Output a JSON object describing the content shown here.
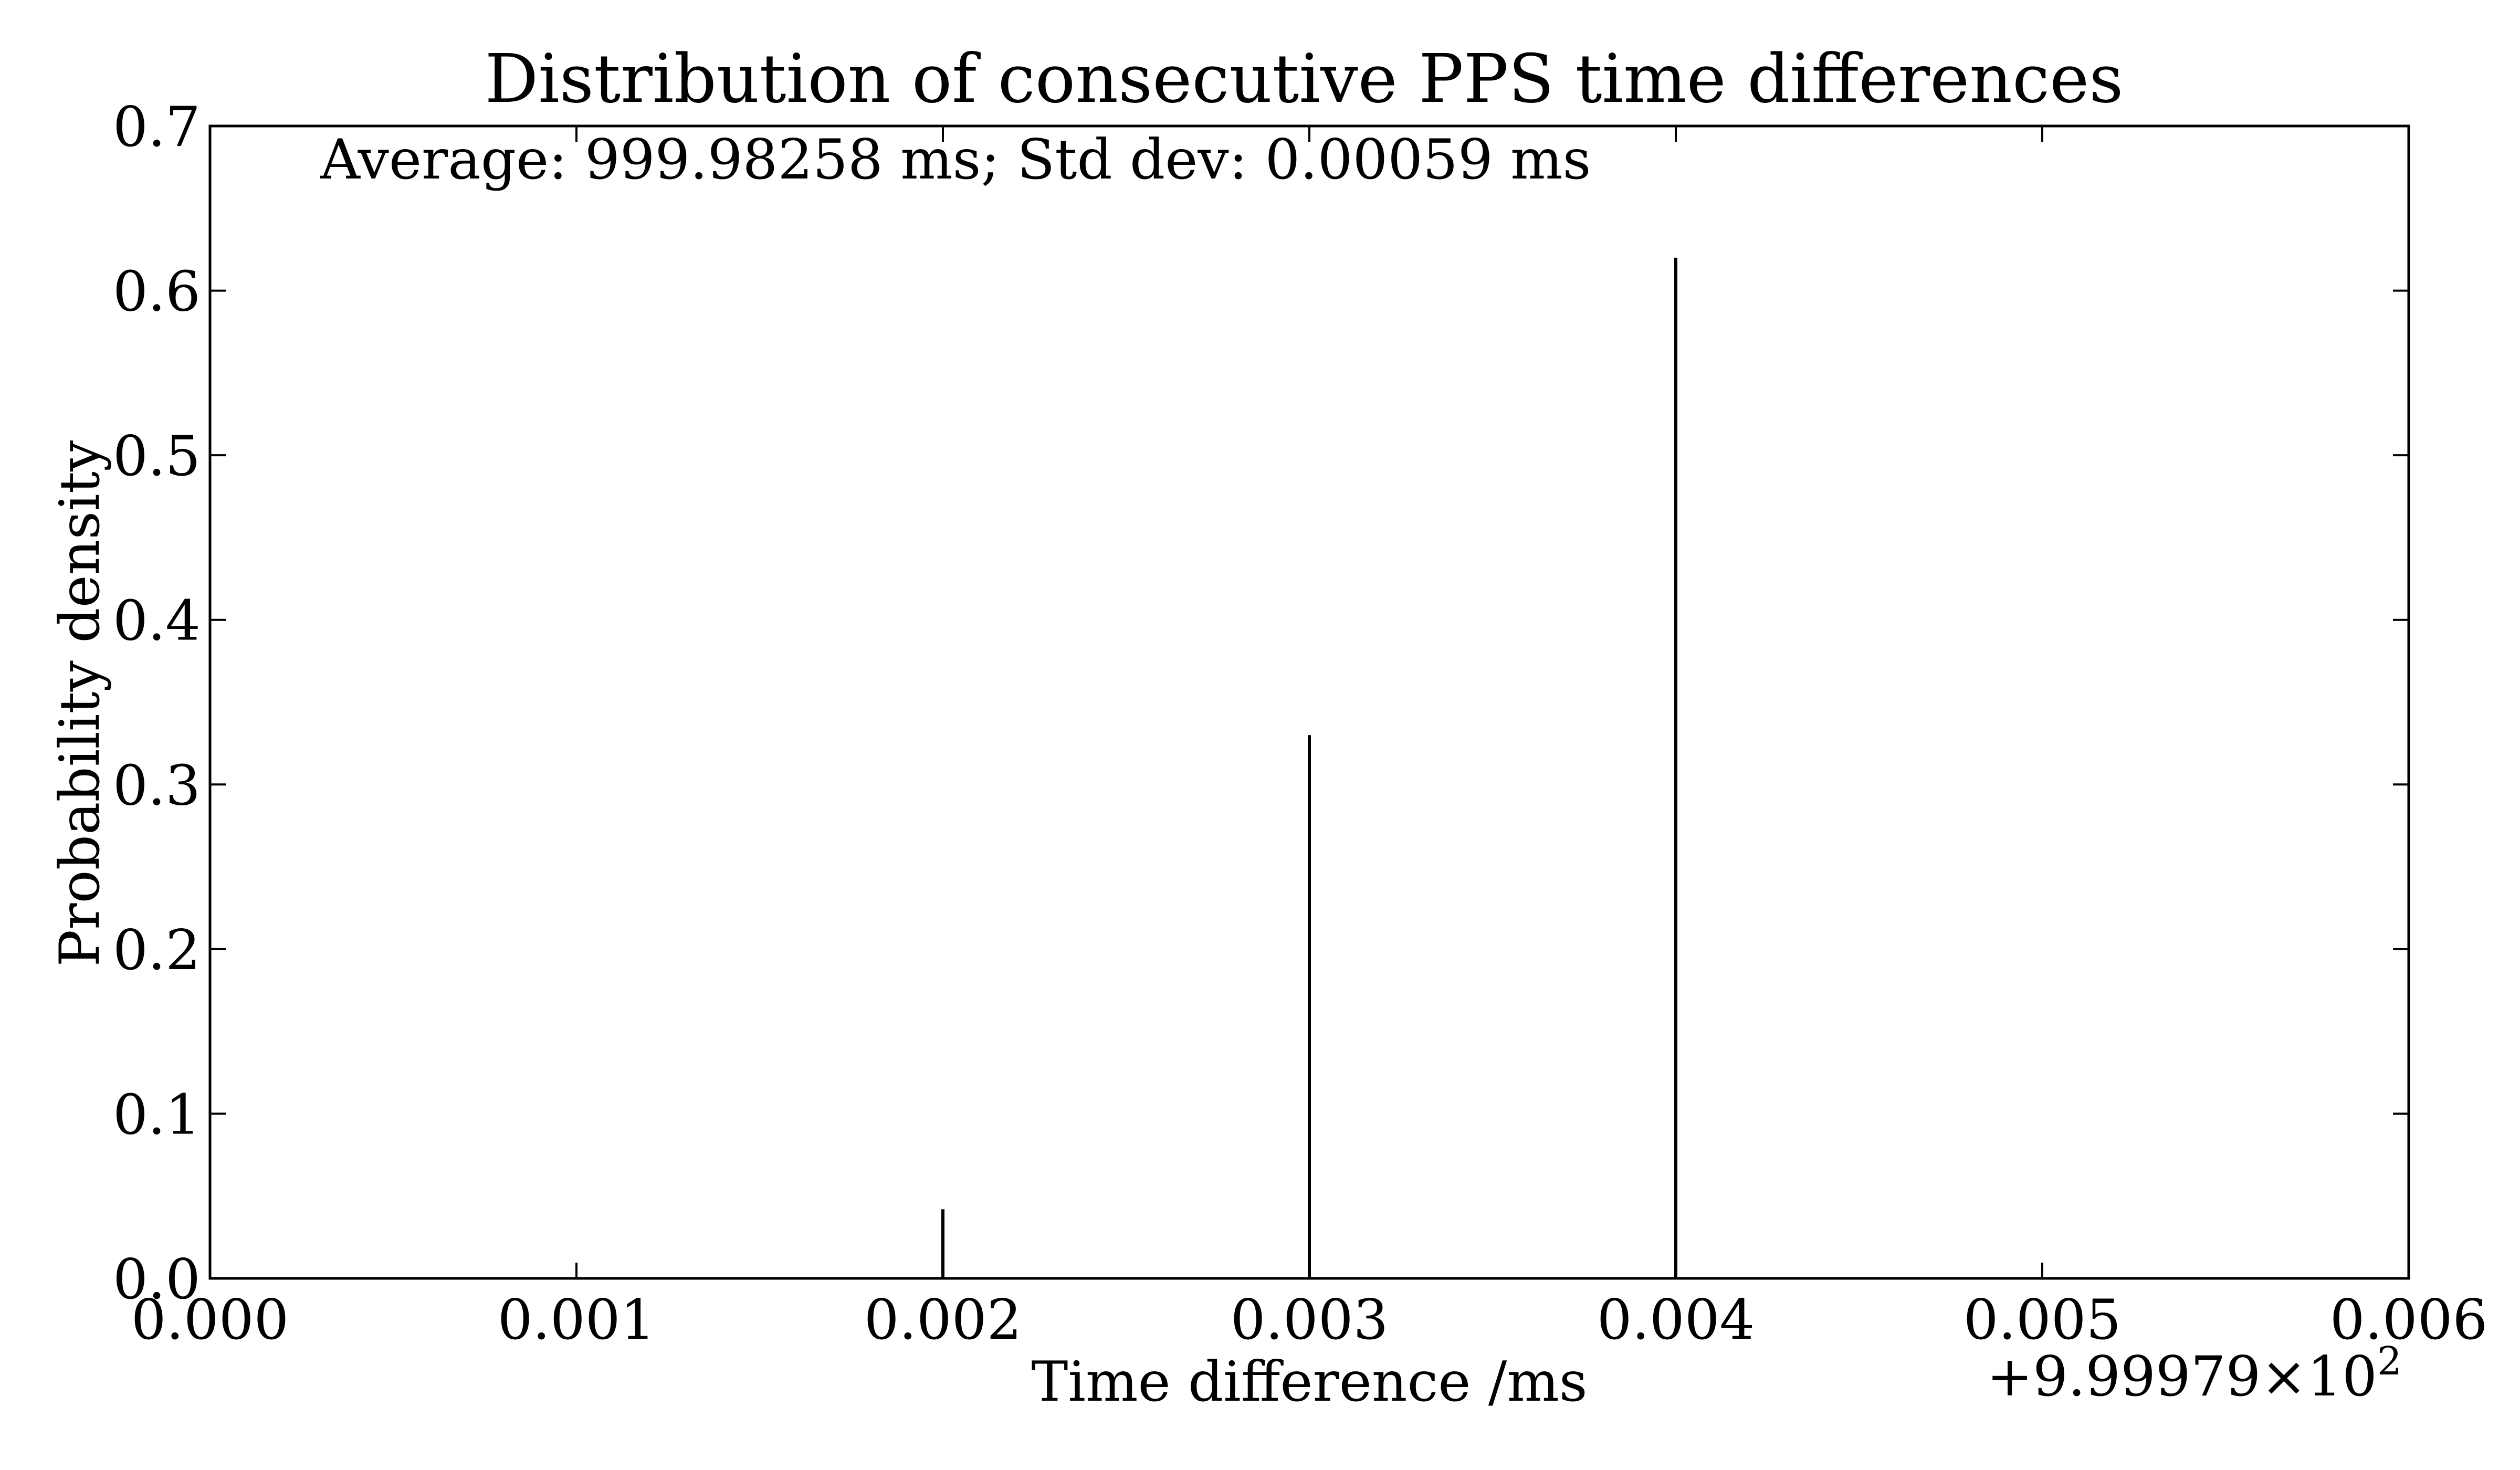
{
  "chart_data": {
    "type": "bar",
    "title": "Distribution of consecutive PPS time differences",
    "xlabel": "Time difference /ms",
    "ylabel": "Probability density",
    "annotation": "Average: 999.98258 ms; Std dev: 0.00059 ms",
    "offset_label": "+9.99979×10",
    "offset_exponent": "2",
    "xlim": [
      0.0,
      0.006
    ],
    "ylim": [
      0.0,
      0.7
    ],
    "xticks": [
      "0.000",
      "0.001",
      "0.002",
      "0.003",
      "0.004",
      "0.005",
      "0.006"
    ],
    "yticks": [
      "0.0",
      "0.1",
      "0.2",
      "0.3",
      "0.4",
      "0.5",
      "0.6",
      "0.7"
    ],
    "x": [
      0.002,
      0.003,
      0.004
    ],
    "values": [
      0.042,
      0.33,
      0.62
    ],
    "grid": false,
    "bar_color": "#000000"
  }
}
